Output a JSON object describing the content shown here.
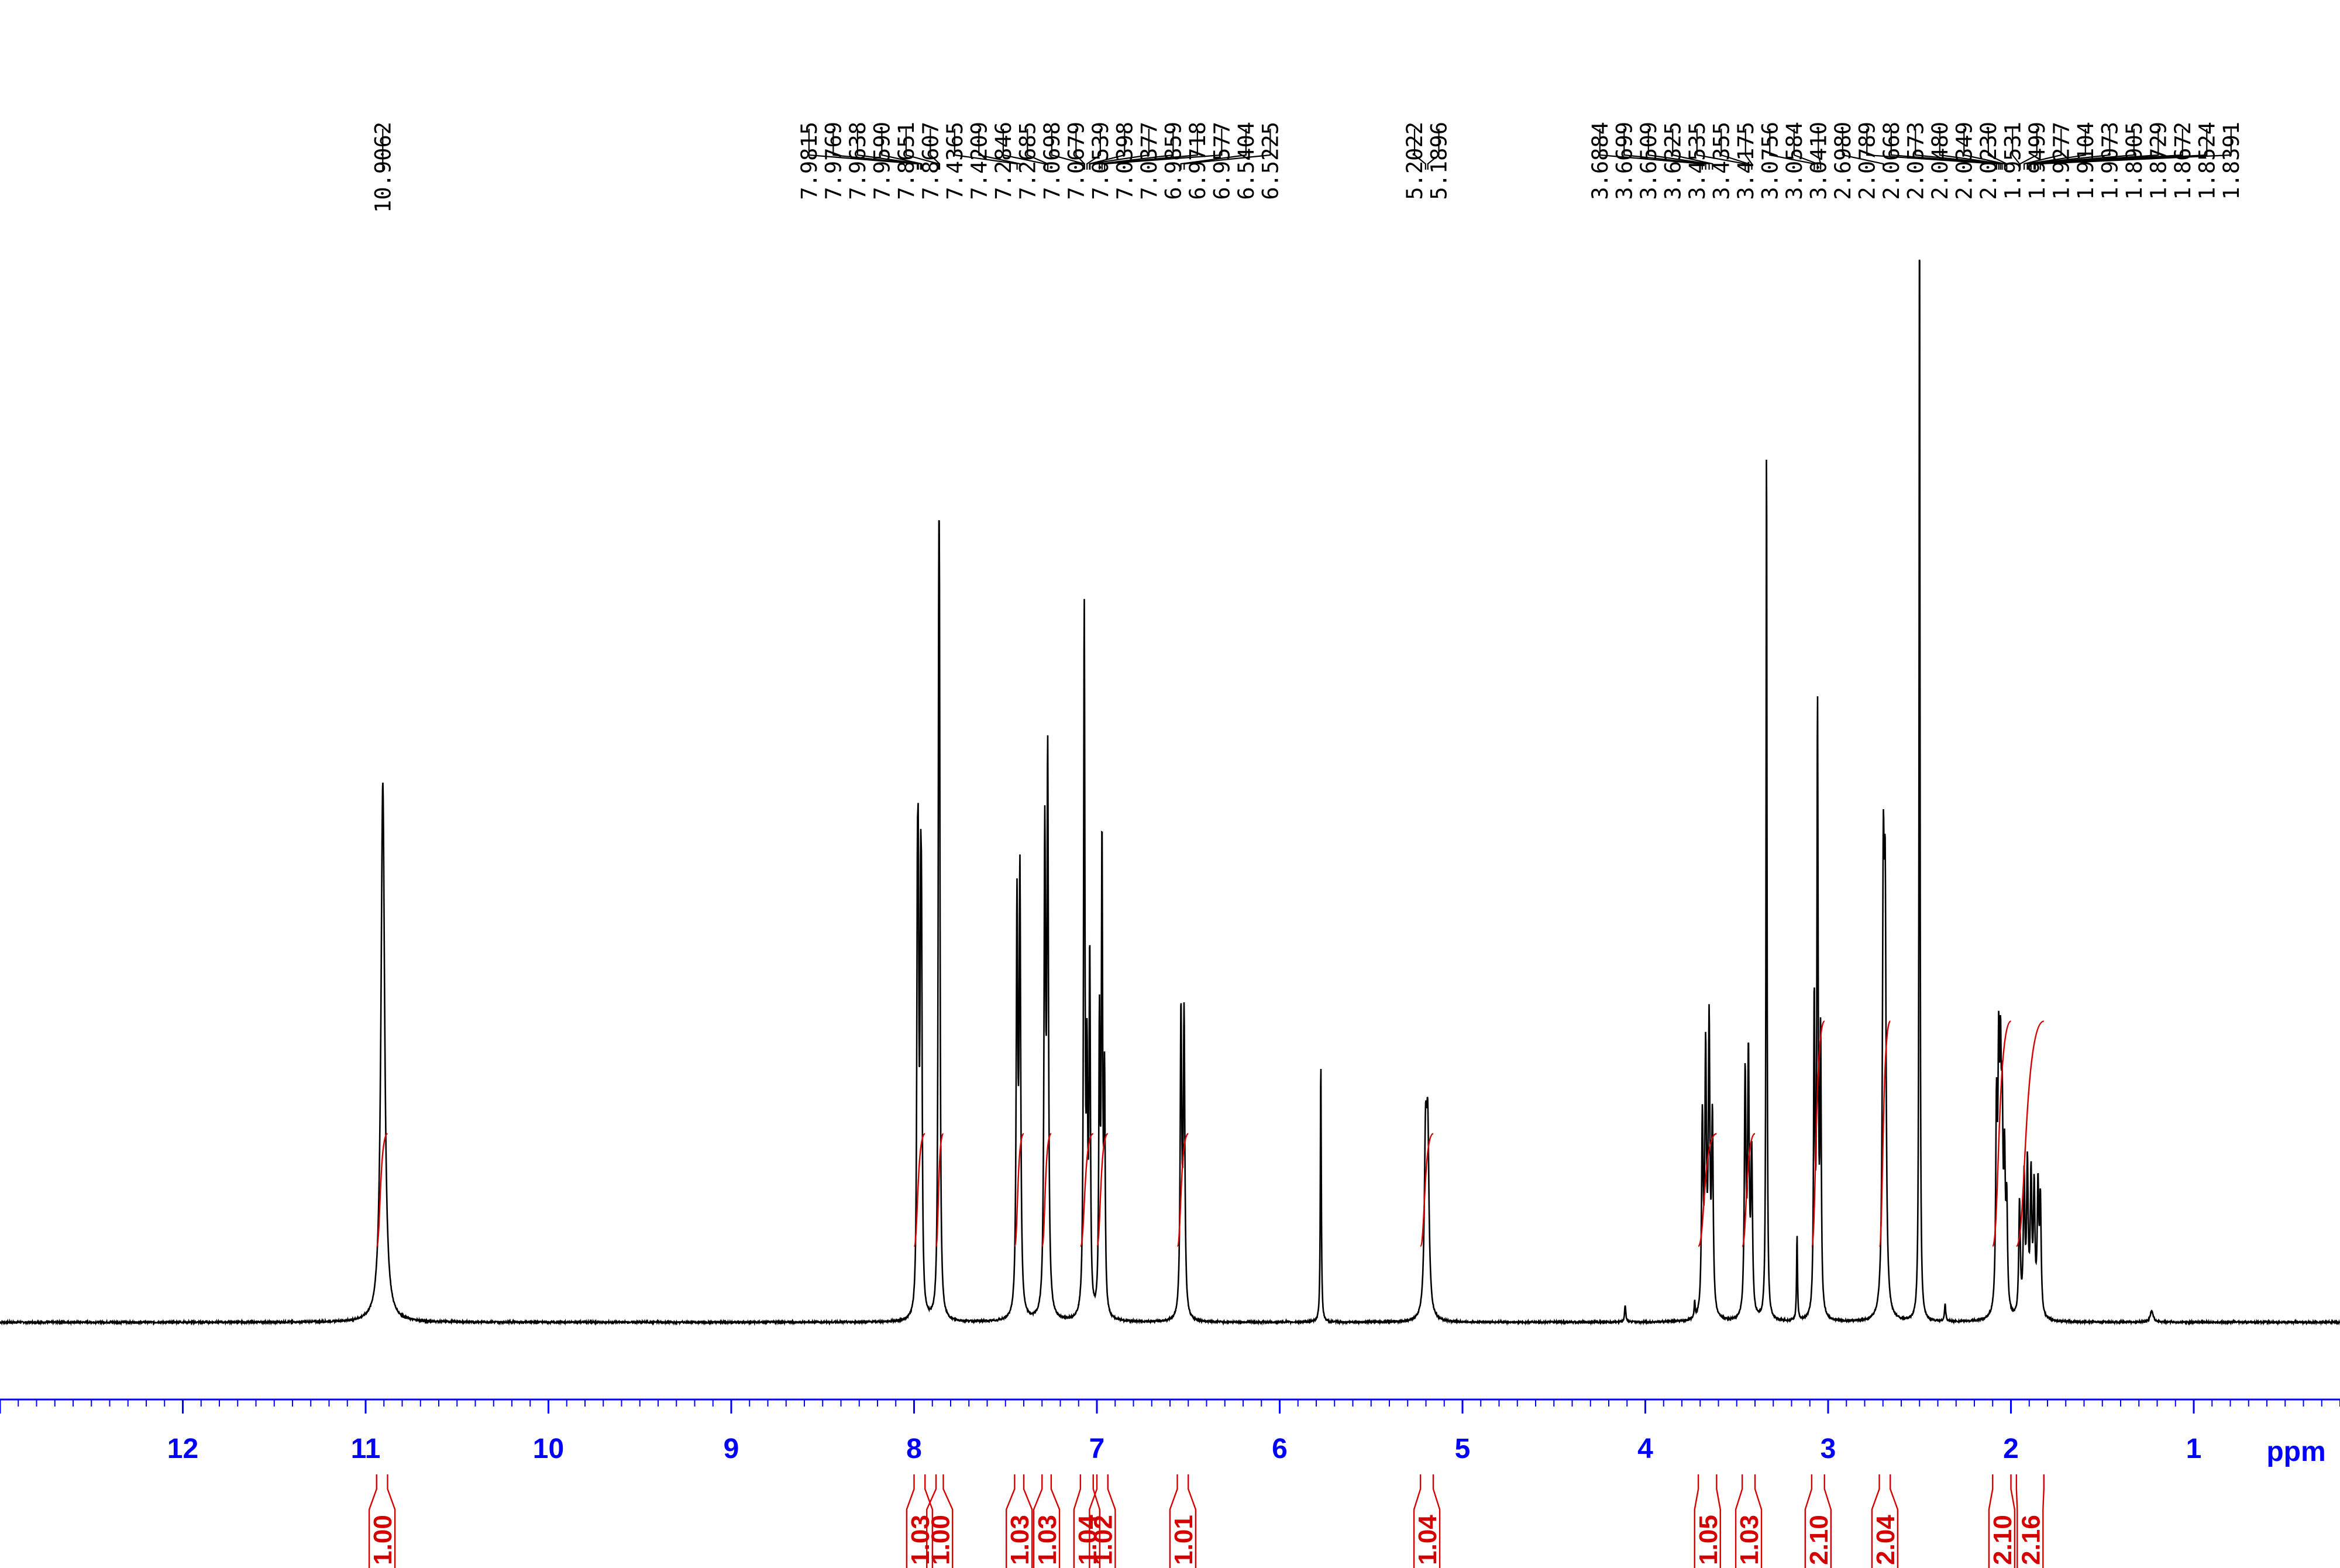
{
  "chart_data": {
    "type": "line",
    "title": "",
    "xlabel": "ppm",
    "ylabel": "",
    "xlim": [
      13.0,
      0.2
    ],
    "x_reversed": true,
    "grid": false,
    "x_ticks": [
      "12",
      "11",
      "10",
      "9",
      "8",
      "7",
      "6",
      "5",
      "4",
      "3",
      "2",
      "1"
    ],
    "peak_label_groups": [
      {
        "labels": [
          "10.9062"
        ]
      },
      {
        "labels": [
          "7.9815",
          "7.9769",
          "7.9638",
          "7.9590",
          "7.8651",
          "7.8607",
          "7.4365",
          "7.4209",
          "7.2846",
          "7.2685",
          "7.0698",
          "7.0679",
          "7.0539",
          "7.0398",
          "7.0377",
          "6.9859",
          "6.9718",
          "6.9577",
          "6.5404",
          "6.5225"
        ]
      },
      {
        "labels": [
          "5.2022",
          "5.1896"
        ]
      },
      {
        "labels": [
          "3.6884",
          "3.6699",
          "3.6509",
          "3.6325",
          "3.4535",
          "3.4355",
          "3.4175",
          "3.0756",
          "3.0584",
          "3.0410",
          "2.6980",
          "2.0789",
          "2.0668",
          "2.0573",
          "2.0480",
          "2.0349",
          "2.0230",
          "1.9531",
          "1.9499",
          "1.9277",
          "1.9104",
          "1.9073",
          "1.8905",
          "1.8729",
          "1.8672",
          "1.8524",
          "1.8391"
        ]
      }
    ],
    "peaks": [
      {
        "ppm": 10.906,
        "height": 0.475,
        "width": 0.012
      },
      {
        "ppm": 7.982,
        "height": 0.285,
        "width": 0.004
      },
      {
        "ppm": 7.977,
        "height": 0.3,
        "width": 0.004
      },
      {
        "ppm": 7.964,
        "height": 0.285,
        "width": 0.004
      },
      {
        "ppm": 7.959,
        "height": 0.26,
        "width": 0.004
      },
      {
        "ppm": 7.865,
        "height": 0.455,
        "width": 0.004
      },
      {
        "ppm": 7.861,
        "height": 0.43,
        "width": 0.004
      },
      {
        "ppm": 7.437,
        "height": 0.355,
        "width": 0.005
      },
      {
        "ppm": 7.421,
        "height": 0.38,
        "width": 0.005
      },
      {
        "ppm": 7.285,
        "height": 0.41,
        "width": 0.005
      },
      {
        "ppm": 7.269,
        "height": 0.48,
        "width": 0.005
      },
      {
        "ppm": 7.07,
        "height": 0.355,
        "width": 0.004
      },
      {
        "ppm": 7.068,
        "height": 0.3,
        "width": 0.004
      },
      {
        "ppm": 7.054,
        "height": 0.2,
        "width": 0.004
      },
      {
        "ppm": 7.04,
        "height": 0.17,
        "width": 0.004
      },
      {
        "ppm": 7.038,
        "height": 0.16,
        "width": 0.004
      },
      {
        "ppm": 6.986,
        "height": 0.25,
        "width": 0.004
      },
      {
        "ppm": 6.972,
        "height": 0.41,
        "width": 0.004
      },
      {
        "ppm": 6.958,
        "height": 0.2,
        "width": 0.004
      },
      {
        "ppm": 6.54,
        "height": 0.265,
        "width": 0.005
      },
      {
        "ppm": 6.523,
        "height": 0.26,
        "width": 0.005
      },
      {
        "ppm": 5.775,
        "height": 0.232,
        "width": 0.003
      },
      {
        "ppm": 5.202,
        "height": 0.145,
        "width": 0.008
      },
      {
        "ppm": 5.19,
        "height": 0.15,
        "width": 0.008
      },
      {
        "ppm": 4.11,
        "height": 0.015,
        "width": 0.004
      },
      {
        "ppm": 3.73,
        "height": 0.015,
        "width": 0.003
      },
      {
        "ppm": 3.688,
        "height": 0.17,
        "width": 0.005
      },
      {
        "ppm": 3.67,
        "height": 0.225,
        "width": 0.005
      },
      {
        "ppm": 3.651,
        "height": 0.25,
        "width": 0.005
      },
      {
        "ppm": 3.633,
        "height": 0.17,
        "width": 0.005
      },
      {
        "ppm": 3.454,
        "height": 0.21,
        "width": 0.005
      },
      {
        "ppm": 3.436,
        "height": 0.225,
        "width": 0.005
      },
      {
        "ppm": 3.418,
        "height": 0.14,
        "width": 0.005
      },
      {
        "ppm": 3.337,
        "height": 0.788,
        "width": 0.003
      },
      {
        "ppm": 3.17,
        "height": 0.075,
        "width": 0.003
      },
      {
        "ppm": 3.076,
        "height": 0.275,
        "width": 0.004
      },
      {
        "ppm": 3.058,
        "height": 0.53,
        "width": 0.004
      },
      {
        "ppm": 3.041,
        "height": 0.24,
        "width": 0.004
      },
      {
        "ppm": 2.698,
        "height": 0.36,
        "width": 0.006
      },
      {
        "ppm": 2.688,
        "height": 0.33,
        "width": 0.006
      },
      {
        "ppm": 2.5,
        "height": 1.0,
        "width": 0.003
      },
      {
        "ppm": 2.36,
        "height": 0.015,
        "width": 0.004
      },
      {
        "ppm": 2.079,
        "height": 0.17,
        "width": 0.005
      },
      {
        "ppm": 2.067,
        "height": 0.2,
        "width": 0.005
      },
      {
        "ppm": 2.057,
        "height": 0.18,
        "width": 0.005
      },
      {
        "ppm": 2.048,
        "height": 0.15,
        "width": 0.005
      },
      {
        "ppm": 2.035,
        "height": 0.12,
        "width": 0.005
      },
      {
        "ppm": 2.023,
        "height": 0.09,
        "width": 0.005
      },
      {
        "ppm": 1.953,
        "height": 0.1,
        "width": 0.005
      },
      {
        "ppm": 1.928,
        "height": 0.12,
        "width": 0.005
      },
      {
        "ppm": 1.91,
        "height": 0.13,
        "width": 0.005
      },
      {
        "ppm": 1.89,
        "height": 0.12,
        "width": 0.005
      },
      {
        "ppm": 1.873,
        "height": 0.11,
        "width": 0.005
      },
      {
        "ppm": 1.852,
        "height": 0.11,
        "width": 0.005
      },
      {
        "ppm": 1.839,
        "height": 0.1,
        "width": 0.005
      },
      {
        "ppm": 1.23,
        "height": 0.01,
        "width": 0.01
      }
    ],
    "integrals": [
      {
        "value": "1.00",
        "from": 10.94,
        "to": 10.88,
        "rise": 0.18
      },
      {
        "value": "1.03",
        "from": 8.0,
        "to": 7.94,
        "rise": 0.18
      },
      {
        "value": "1.00",
        "from": 7.88,
        "to": 7.84,
        "rise": 0.18
      },
      {
        "value": "1.03",
        "from": 7.45,
        "to": 7.4,
        "rise": 0.18
      },
      {
        "value": "1.03",
        "from": 7.3,
        "to": 7.25,
        "rise": 0.18
      },
      {
        "value": "1.04",
        "from": 7.09,
        "to": 7.02,
        "rise": 0.18
      },
      {
        "value": "1.02",
        "from": 7.0,
        "to": 6.94,
        "rise": 0.18
      },
      {
        "value": "1.01",
        "from": 6.56,
        "to": 6.5,
        "rise": 0.18
      },
      {
        "value": "1.04",
        "from": 5.23,
        "to": 5.16,
        "rise": 0.18
      },
      {
        "value": "1.05",
        "from": 3.71,
        "to": 3.61,
        "rise": 0.18
      },
      {
        "value": "1.03",
        "from": 3.47,
        "to": 3.4,
        "rise": 0.18
      },
      {
        "value": "2.10",
        "from": 3.09,
        "to": 3.02,
        "rise": 0.36
      },
      {
        "value": "2.04",
        "from": 2.72,
        "to": 2.66,
        "rise": 0.36
      },
      {
        "value": "2.10",
        "from": 2.1,
        "to": 2.0,
        "rise": 0.36
      },
      {
        "value": "2.16",
        "from": 1.97,
        "to": 1.82,
        "rise": 0.36
      }
    ],
    "colors": {
      "spectrum": "#000000",
      "axis": "#0000ff",
      "integral": "#d40000",
      "labels": "#000000"
    }
  }
}
